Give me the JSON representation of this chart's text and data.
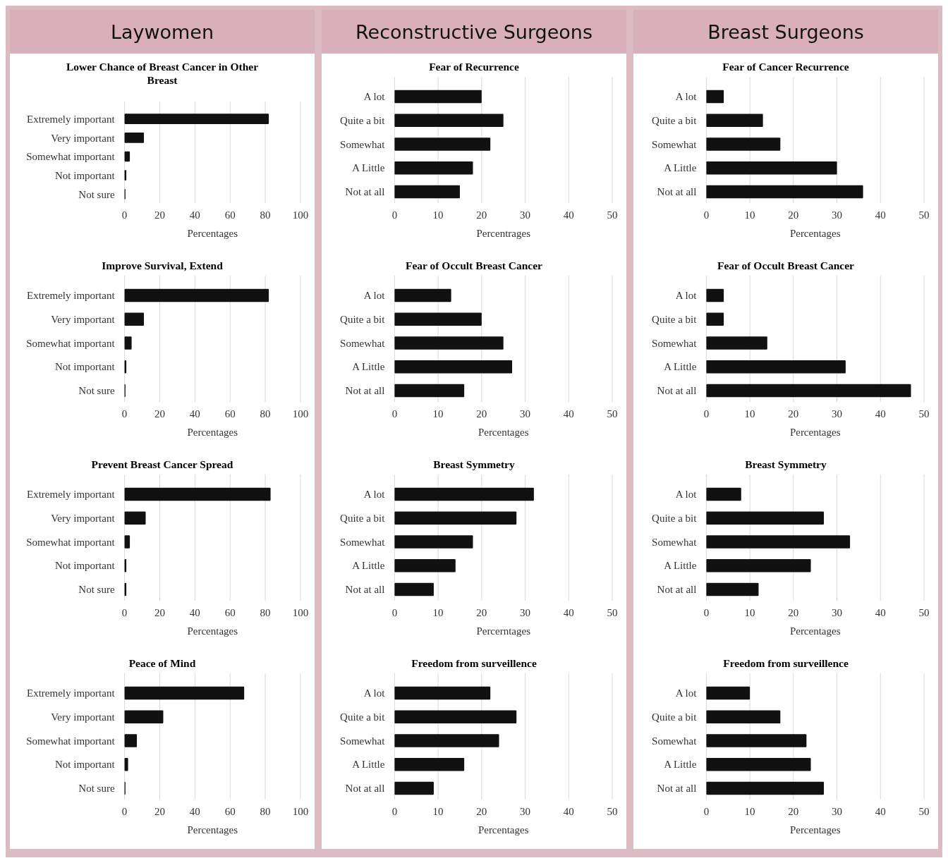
{
  "chart_data": [
    {
      "type": "bar",
      "orientation": "horizontal",
      "title": "Lower Chance of Breast Cancer in Other Breast",
      "annotations": [
        "Laywomen"
      ],
      "categories": [
        "Extremely important",
        "Very important",
        "Somewhat important",
        "Not important",
        "Not sure"
      ],
      "values": [
        82,
        11,
        3,
        1,
        0.5
      ],
      "color": "#111111",
      "xlim": [
        0,
        100
      ],
      "xticks": [
        0,
        20,
        40,
        60,
        80,
        100
      ],
      "xlabel": "Percentages",
      "grid": "x"
    },
    {
      "type": "bar",
      "orientation": "horizontal",
      "title": "Fear of Recurrence",
      "annotations": [
        "Reconstructive Surgeons"
      ],
      "categories": [
        "A lot",
        "Quite a bit",
        "Somewhat",
        "A Little",
        "Not at all"
      ],
      "values": [
        20,
        25,
        22,
        18,
        15
      ],
      "color": "#111111",
      "xlim": [
        0,
        50
      ],
      "xticks": [
        0,
        10,
        20,
        30,
        40,
        50
      ],
      "xlabel": "Percentrages",
      "grid": "x"
    },
    {
      "type": "bar",
      "orientation": "horizontal",
      "title": "Fear of Cancer Recurrence",
      "annotations": [
        "Breast Surgeons"
      ],
      "categories": [
        "A lot",
        "Quite a bit",
        "Somewhat",
        "A Little",
        "Not at all"
      ],
      "values": [
        4,
        13,
        17,
        30,
        36
      ],
      "color": "#111111",
      "xlim": [
        0,
        50
      ],
      "xticks": [
        0,
        10,
        20,
        30,
        40,
        50
      ],
      "xlabel": "Percentages",
      "grid": "x"
    },
    {
      "type": "bar",
      "orientation": "horizontal",
      "title": "Improve Survival, Extend",
      "categories": [
        "Extremely important",
        "Very important",
        "Somewhat important",
        "Not important",
        "Not sure"
      ],
      "values": [
        82,
        11,
        4,
        1,
        0.5
      ],
      "color": "#111111",
      "xlim": [
        0,
        100
      ],
      "xticks": [
        0,
        20,
        40,
        60,
        80,
        100
      ],
      "xlabel": "Percentages",
      "grid": "x"
    },
    {
      "type": "bar",
      "orientation": "horizontal",
      "title": "Fear of Occult Breast Cancer",
      "categories": [
        "A lot",
        "Quite a bit",
        "Somewhat",
        "A Little",
        "Not at all"
      ],
      "values": [
        13,
        20,
        25,
        27,
        16
      ],
      "color": "#111111",
      "xlim": [
        0,
        50
      ],
      "xticks": [
        0,
        10,
        20,
        30,
        40,
        50
      ],
      "xlabel": "Percentages",
      "grid": "x"
    },
    {
      "type": "bar",
      "orientation": "horizontal",
      "title": "Fear of Occult Breast Cancer",
      "categories": [
        "A lot",
        "Quite a bit",
        "Somewhat",
        "A Little",
        "Not at all"
      ],
      "values": [
        4,
        4,
        14,
        32,
        47
      ],
      "color": "#111111",
      "xlim": [
        0,
        50
      ],
      "xticks": [
        0,
        10,
        20,
        30,
        40,
        50
      ],
      "xlabel": "Percentages",
      "grid": "x"
    },
    {
      "type": "bar",
      "orientation": "horizontal",
      "title": "Prevent Breast Cancer Spread",
      "categories": [
        "Extremely important",
        "Very important",
        "Somewhat important",
        "Not important",
        "Not sure"
      ],
      "values": [
        83,
        12,
        3,
        1,
        1
      ],
      "color": "#111111",
      "xlim": [
        0,
        100
      ],
      "xticks": [
        0,
        20,
        40,
        60,
        80,
        100
      ],
      "xlabel": "Percentages",
      "grid": "x"
    },
    {
      "type": "bar",
      "orientation": "horizontal",
      "title": "Breast Symmetry",
      "categories": [
        "A lot",
        "Quite a bit",
        "Somewhat",
        "A Little",
        "Not at all"
      ],
      "values": [
        32,
        28,
        18,
        14,
        9
      ],
      "color": "#111111",
      "xlim": [
        0,
        50
      ],
      "xticks": [
        0,
        10,
        20,
        30,
        40,
        50
      ],
      "xlabel": "Percerntages",
      "grid": "x"
    },
    {
      "type": "bar",
      "orientation": "horizontal",
      "title": "Breast Symmetry",
      "categories": [
        "A lot",
        "Quite a bit",
        "Somewhat",
        "A Little",
        "Not at all"
      ],
      "values": [
        8,
        27,
        33,
        24,
        12
      ],
      "color": "#111111",
      "xlim": [
        0,
        50
      ],
      "xticks": [
        0,
        10,
        20,
        30,
        40,
        50
      ],
      "xlabel": "Percentages",
      "grid": "x"
    },
    {
      "type": "bar",
      "orientation": "horizontal",
      "title": "Peace of Mind",
      "categories": [
        "Extremely important",
        "Very important",
        "Somewhat important",
        "Not important",
        "Not sure"
      ],
      "values": [
        68,
        22,
        7,
        2,
        0.5
      ],
      "color": "#111111",
      "xlim": [
        0,
        100
      ],
      "xticks": [
        0,
        20,
        40,
        60,
        80,
        100
      ],
      "xlabel": "Percentages",
      "grid": "x"
    },
    {
      "type": "bar",
      "orientation": "horizontal",
      "title": "Freedom from surveillence",
      "categories": [
        "A lot",
        "Quite a bit",
        "Somewhat",
        "A Little",
        "Not at all"
      ],
      "values": [
        22,
        28,
        24,
        16,
        9
      ],
      "color": "#111111",
      "xlim": [
        0,
        50
      ],
      "xticks": [
        0,
        10,
        20,
        30,
        40,
        50
      ],
      "xlabel": "Percentages",
      "grid": "x"
    },
    {
      "type": "bar",
      "orientation": "horizontal",
      "title": "Freedom from surveillence",
      "categories": [
        "A lot",
        "Quite a bit",
        "Somewhat",
        "A Little",
        "Not at all"
      ],
      "values": [
        10,
        17,
        23,
        24,
        27
      ],
      "color": "#111111",
      "xlim": [
        0,
        50
      ],
      "xticks": [
        0,
        10,
        20,
        30,
        40,
        50
      ],
      "xlabel": "Percentages",
      "grid": "x"
    }
  ]
}
